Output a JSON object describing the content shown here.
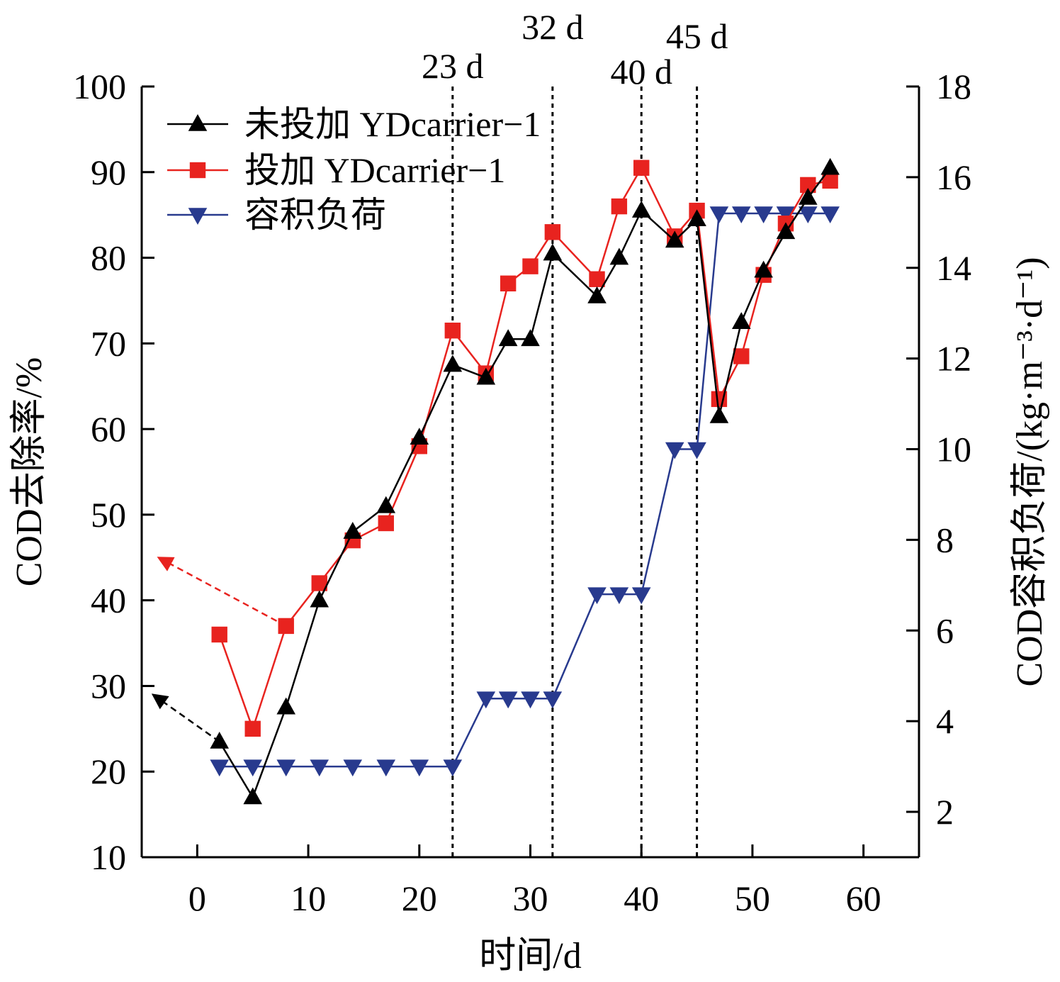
{
  "chart_data": {
    "type": "line",
    "xlabel": "时间/d",
    "ylabel": "COD去除率/%",
    "y2label": "COD容积负荷/(kg·m⁻³·d⁻¹)",
    "xlim": [
      -5,
      65
    ],
    "ylim": [
      10,
      100
    ],
    "y2lim": [
      1,
      18
    ],
    "xticks": [
      0,
      10,
      20,
      30,
      40,
      50,
      60
    ],
    "yticks": [
      10,
      20,
      30,
      40,
      50,
      60,
      70,
      80,
      90,
      100
    ],
    "y2ticks": [
      2,
      4,
      6,
      8,
      10,
      12,
      14,
      16,
      18
    ],
    "vlines": [
      {
        "x": 23,
        "label": "23 d"
      },
      {
        "x": 32,
        "label": "32 d"
      },
      {
        "x": 40,
        "label": "40 d"
      },
      {
        "x": 45,
        "label": "45 d"
      }
    ],
    "series": [
      {
        "name": "未投加 YDcarrier−1",
        "color": "#000000",
        "marker": "triangle-up",
        "axis": "left",
        "x": [
          2,
          5,
          8,
          11,
          14,
          17,
          20,
          23,
          26,
          28,
          30,
          32,
          36,
          38,
          40,
          43,
          45,
          47,
          49,
          51,
          53,
          55,
          57
        ],
        "y": [
          23.5,
          17,
          27.5,
          40,
          48,
          51,
          59,
          67.5,
          66,
          70.5,
          70.5,
          80.5,
          75.5,
          80,
          85.5,
          82,
          84.5,
          61.5,
          72.5,
          78.5,
          83,
          87,
          90.5
        ]
      },
      {
        "name": "投加 YDcarrier−1",
        "color": "#e8231f",
        "marker": "square",
        "axis": "left",
        "x": [
          2,
          5,
          8,
          11,
          14,
          17,
          20,
          23,
          26,
          28,
          30,
          32,
          36,
          38,
          40,
          43,
          45,
          47,
          49,
          51,
          53,
          55,
          57
        ],
        "y": [
          36,
          25,
          37,
          42,
          47,
          49,
          58,
          71.5,
          66.5,
          77,
          79,
          83,
          77.5,
          86,
          90.5,
          82.5,
          85.5,
          63.5,
          68.5,
          78,
          84,
          88.5,
          89
        ]
      },
      {
        "name": "容积负荷",
        "color": "#283a8e",
        "marker": "triangle-down",
        "axis": "right",
        "x": [
          2,
          5,
          8,
          11,
          14,
          17,
          20,
          23,
          26,
          28,
          30,
          32,
          36,
          38,
          40,
          43,
          45,
          47,
          49,
          51,
          53,
          55,
          57
        ],
        "y": [
          3,
          3,
          3,
          3,
          3,
          3,
          3,
          3,
          4.5,
          4.5,
          4.5,
          4.5,
          6.8,
          6.8,
          6.8,
          10,
          10,
          15.2,
          15.2,
          15.2,
          15.2,
          15.2,
          15.2
        ]
      }
    ],
    "annotations": [
      {
        "type": "arrow",
        "color": "#000000",
        "from": [
          2,
          23.5
        ],
        "to": [
          -4,
          29
        ]
      },
      {
        "type": "arrow",
        "color": "#e8231f",
        "from": [
          8,
          37
        ],
        "to": [
          -3.5,
          45
        ]
      }
    ]
  }
}
